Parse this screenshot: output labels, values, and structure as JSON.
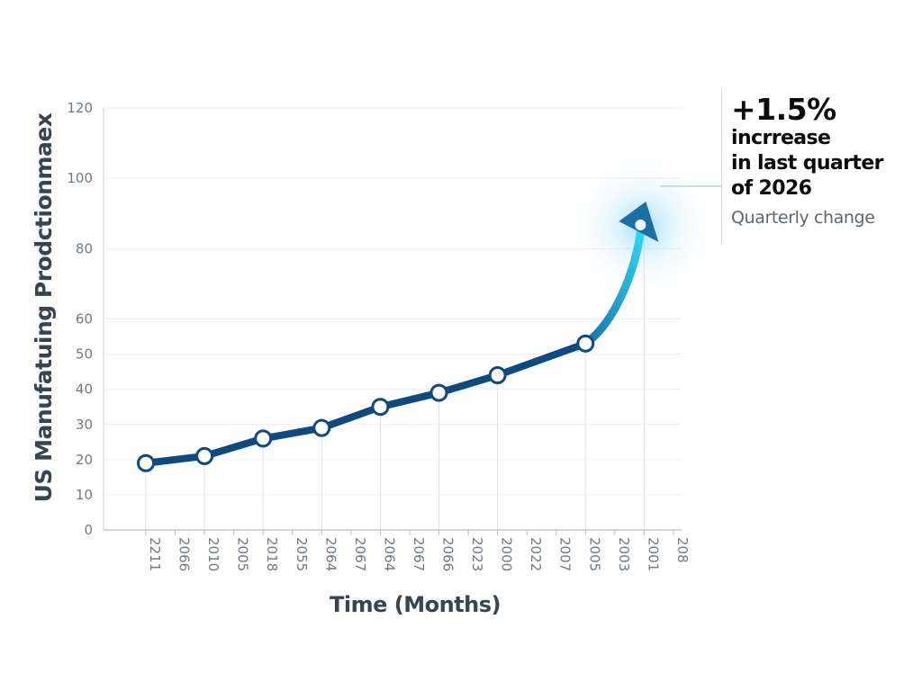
{
  "chart_data": {
    "type": "line",
    "ylabel": "US Manufatuing Prodctionmaex",
    "xlabel": "Time (Months)",
    "ylim": [
      0,
      120
    ],
    "yticks": [
      0,
      10,
      20,
      30,
      40,
      50,
      60,
      80,
      100,
      120
    ],
    "x_tick_labels": [
      "2211",
      "2066",
      "2010",
      "2005",
      "2018",
      "2055",
      "2064",
      "2067",
      "2064",
      "2067",
      "2066",
      "2023",
      "2000",
      "2022",
      "2007",
      "2005",
      "2003",
      "2001",
      "208"
    ],
    "series": [
      {
        "points": [
          {
            "x": "2211",
            "y": 19
          },
          {
            "x": "2010",
            "y": 21
          },
          {
            "x": "2018",
            "y": 26
          },
          {
            "x": "2064",
            "y": 29
          },
          {
            "x": "2064",
            "y": 35
          },
          {
            "x": "2066",
            "y": 39
          },
          {
            "x": "2000",
            "y": 44
          },
          {
            "x": "2005",
            "y": 53
          }
        ],
        "arrow_end": {
          "x": "2001",
          "y": 87
        }
      }
    ],
    "grid": true,
    "colors": {
      "line": "#0e4a7f",
      "arrow": "#1ec8e6",
      "marker_fill": "#ffffff"
    }
  },
  "callout": {
    "headline": "+1.5%",
    "line1": "incrrease",
    "line2": "in last quarter",
    "line3": "of 2026",
    "sub": "Quarterly change"
  }
}
